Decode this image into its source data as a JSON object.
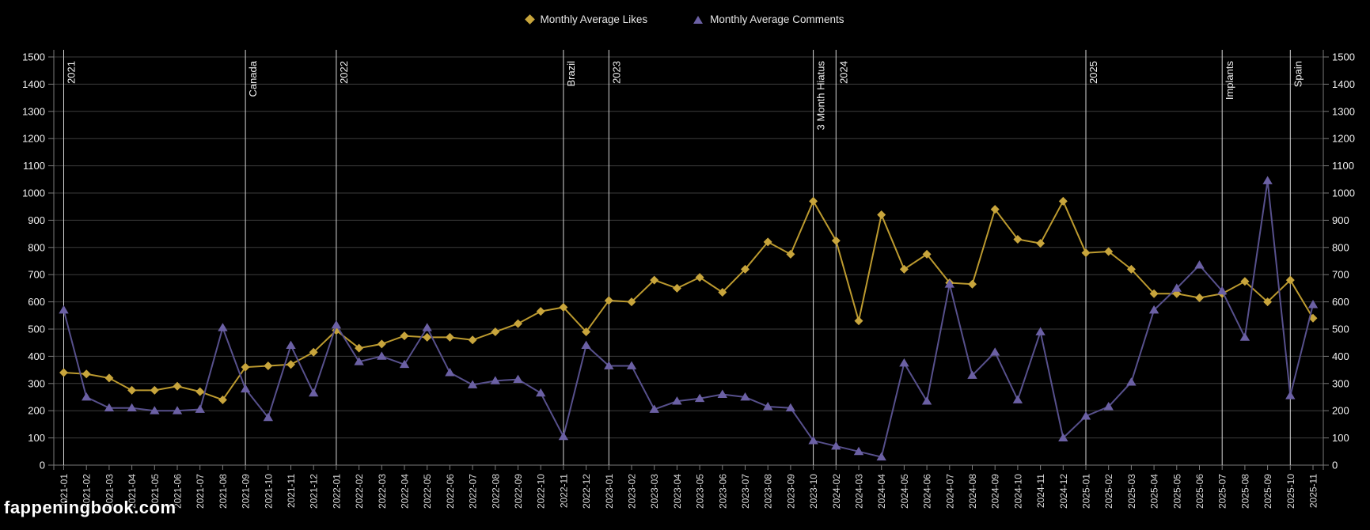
{
  "legend": {
    "likes_label": "Monthly Average Likes",
    "comments_label": "Monthly Average Comments"
  },
  "watermark": "fappeningbook.com",
  "colors": {
    "likes_line": "#BC9A2F",
    "likes_marker": "#C8A53C",
    "comments_line": "#57508C",
    "comments_marker": "#6B60A4",
    "grid": "#3D3D3D",
    "axis": "#7A7A7A",
    "annotation_line": "#D6D6D6",
    "y_tick_text": "#F2F2F2",
    "x_tick_text": "#DCDCDC",
    "annotation_text": "#F0F0F0",
    "background": "#000000"
  },
  "chart_data": {
    "type": "line",
    "title": "",
    "xlabel": "",
    "ylabel": "",
    "ylim": [
      0,
      1500
    ],
    "ytick_step": 100,
    "grid": true,
    "legend_position": "top",
    "categories": [
      "2021-01",
      "2021-02",
      "2021-03",
      "2021-04",
      "2021-05",
      "2021-06",
      "2021-07",
      "2021-08",
      "2021-09",
      "2021-10",
      "2021-11",
      "2021-12",
      "2022-01",
      "2022-02",
      "2022-03",
      "2022-04",
      "2022-05",
      "2022-06",
      "2022-07",
      "2022-08",
      "2022-09",
      "2022-10",
      "2022-11",
      "2022-12",
      "2023-01",
      "2023-02",
      "2023-03",
      "2023-04",
      "2023-05",
      "2023-06",
      "2023-07",
      "2023-08",
      "2023-09",
      "2023-10",
      "2024-02",
      "2024-03",
      "2024-04",
      "2024-05",
      "2024-06",
      "2024-07",
      "2024-08",
      "2024-09",
      "2024-10",
      "2024-11",
      "2024-12",
      "2025-01",
      "2025-02",
      "2025-03",
      "2025-04",
      "2025-05",
      "2025-06",
      "2025-07",
      "2025-08",
      "2025-09",
      "2025-10",
      "2025-11"
    ],
    "series": [
      {
        "name": "Monthly Average Likes",
        "marker": "diamond",
        "values": [
          340,
          335,
          320,
          275,
          275,
          290,
          270,
          240,
          360,
          365,
          370,
          415,
          495,
          430,
          445,
          475,
          470,
          470,
          460,
          490,
          520,
          565,
          580,
          490,
          605,
          600,
          680,
          650,
          690,
          635,
          720,
          820,
          775,
          970,
          825,
          530,
          920,
          720,
          775,
          670,
          665,
          940,
          830,
          815,
          970,
          780,
          785,
          720,
          630,
          630,
          615,
          630,
          675,
          600,
          680,
          540
        ]
      },
      {
        "name": "Monthly Average Comments",
        "marker": "triangle",
        "values": [
          570,
          250,
          210,
          210,
          200,
          200,
          205,
          505,
          280,
          175,
          440,
          265,
          515,
          380,
          400,
          370,
          505,
          340,
          295,
          310,
          315,
          265,
          105,
          440,
          365,
          365,
          205,
          235,
          245,
          260,
          250,
          215,
          210,
          90,
          70,
          50,
          30,
          375,
          235,
          665,
          330,
          415,
          240,
          490,
          100,
          180,
          215,
          305,
          570,
          650,
          735,
          640,
          470,
          1045,
          255,
          590
        ]
      }
    ],
    "annotations": [
      {
        "label": "2021",
        "category": "2021-01"
      },
      {
        "label": "Canada",
        "category": "2021-09"
      },
      {
        "label": "2022",
        "category": "2022-01"
      },
      {
        "label": "Brazil",
        "category": "2022-11"
      },
      {
        "label": "2023",
        "category": "2023-01"
      },
      {
        "label": "3 Month Hiatus",
        "category": "2023-10"
      },
      {
        "label": "2024",
        "category": "2024-02"
      },
      {
        "label": "2025",
        "category": "2025-01"
      },
      {
        "label": "Implants",
        "category": "2025-07"
      },
      {
        "label": "Spain",
        "category": "2025-10"
      }
    ]
  }
}
